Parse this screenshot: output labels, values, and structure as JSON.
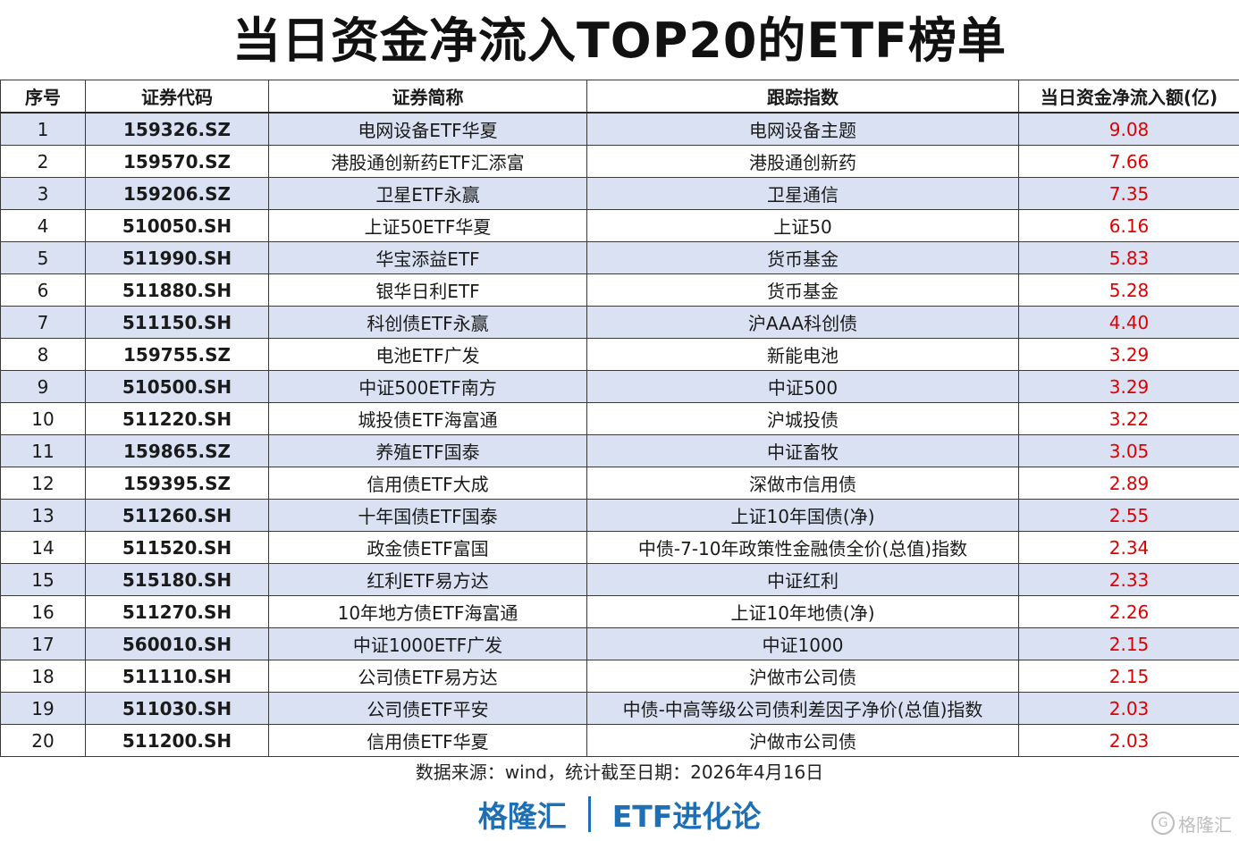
{
  "title": "当日资金净流入TOP20的ETF榜单",
  "table": {
    "headers": [
      "序号",
      "证券代码",
      "证券简称",
      "跟踪指数",
      "当日资金净流入额(亿)"
    ],
    "rows": [
      {
        "no": "1",
        "code": "159326.SZ",
        "name": "电网设备ETF华夏",
        "index": "电网设备主题",
        "flow": "9.08"
      },
      {
        "no": "2",
        "code": "159570.SZ",
        "name": "港股通创新药ETF汇添富",
        "index": "港股通创新药",
        "flow": "7.66"
      },
      {
        "no": "3",
        "code": "159206.SZ",
        "name": "卫星ETF永赢",
        "index": "卫星通信",
        "flow": "7.35"
      },
      {
        "no": "4",
        "code": "510050.SH",
        "name": "上证50ETF华夏",
        "index": "上证50",
        "flow": "6.16"
      },
      {
        "no": "5",
        "code": "511990.SH",
        "name": "华宝添益ETF",
        "index": "货币基金",
        "flow": "5.83"
      },
      {
        "no": "6",
        "code": "511880.SH",
        "name": "银华日利ETF",
        "index": "货币基金",
        "flow": "5.28"
      },
      {
        "no": "7",
        "code": "511150.SH",
        "name": "科创债ETF永赢",
        "index": "沪AAA科创债",
        "flow": "4.40"
      },
      {
        "no": "8",
        "code": "159755.SZ",
        "name": "电池ETF广发",
        "index": "新能电池",
        "flow": "3.29"
      },
      {
        "no": "9",
        "code": "510500.SH",
        "name": "中证500ETF南方",
        "index": "中证500",
        "flow": "3.29"
      },
      {
        "no": "10",
        "code": "511220.SH",
        "name": "城投债ETF海富通",
        "index": "沪城投债",
        "flow": "3.22"
      },
      {
        "no": "11",
        "code": "159865.SZ",
        "name": "养殖ETF国泰",
        "index": "中证畜牧",
        "flow": "3.05"
      },
      {
        "no": "12",
        "code": "159395.SZ",
        "name": "信用债ETF大成",
        "index": "深做市信用债",
        "flow": "2.89"
      },
      {
        "no": "13",
        "code": "511260.SH",
        "name": "十年国债ETF国泰",
        "index": "上证10年国债(净)",
        "flow": "2.55"
      },
      {
        "no": "14",
        "code": "511520.SH",
        "name": "政金债ETF富国",
        "index": "中债-7-10年政策性金融债全价(总值)指数",
        "flow": "2.34"
      },
      {
        "no": "15",
        "code": "515180.SH",
        "name": "红利ETF易方达",
        "index": "中证红利",
        "flow": "2.33"
      },
      {
        "no": "16",
        "code": "511270.SH",
        "name": "10年地方债ETF海富通",
        "index": "上证10年地债(净)",
        "flow": "2.26"
      },
      {
        "no": "17",
        "code": "560010.SH",
        "name": "中证1000ETF广发",
        "index": "中证1000",
        "flow": "2.15"
      },
      {
        "no": "18",
        "code": "511110.SH",
        "name": "公司债ETF易方达",
        "index": "沪做市公司债",
        "flow": "2.15"
      },
      {
        "no": "19",
        "code": "511030.SH",
        "name": "公司债ETF平安",
        "index": "中债-中高等级公司债利差因子净价(总值)指数",
        "flow": "2.03"
      },
      {
        "no": "20",
        "code": "511200.SH",
        "name": "信用债ETF华夏",
        "index": "沪做市公司债",
        "flow": "2.03"
      }
    ]
  },
  "source": "数据来源：wind，统计截至日期：2026年4月16日",
  "brand": {
    "left": "格隆汇",
    "right": "ETF进化论"
  },
  "watermark": "格隆汇",
  "colors": {
    "accent": "#1f6fb5",
    "flow_red": "#e00000",
    "row_stripe": "#d9e1f2"
  }
}
